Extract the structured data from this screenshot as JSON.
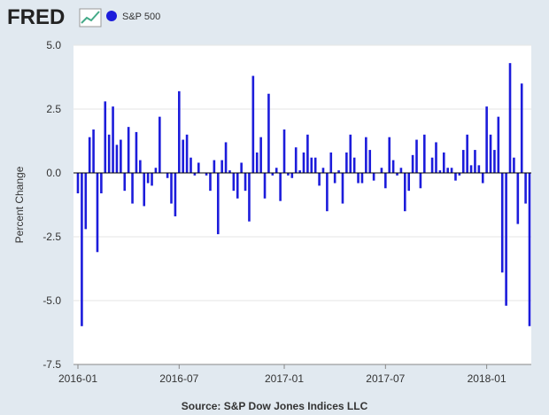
{
  "chart_data": {
    "type": "bar",
    "logo": "FRED",
    "y_label": "Percent Change",
    "source": "Source: S&P Dow Jones Indices LLC",
    "legend_position": "top-left",
    "x": [
      "2016-01",
      "2016-01",
      "2016-01",
      "2016-01",
      "2016-01",
      "2016-02",
      "2016-02",
      "2016-02",
      "2016-02",
      "2016-03",
      "2016-03",
      "2016-03",
      "2016-03",
      "2016-04",
      "2016-04",
      "2016-04",
      "2016-04",
      "2016-04",
      "2016-05",
      "2016-05",
      "2016-05",
      "2016-05",
      "2016-06",
      "2016-06",
      "2016-06",
      "2016-06",
      "2016-07",
      "2016-07",
      "2016-07",
      "2016-07",
      "2016-07",
      "2016-08",
      "2016-08",
      "2016-08",
      "2016-08",
      "2016-09",
      "2016-09",
      "2016-09",
      "2016-09",
      "2016-09",
      "2016-10",
      "2016-10",
      "2016-10",
      "2016-10",
      "2016-11",
      "2016-11",
      "2016-11",
      "2016-11",
      "2016-12",
      "2016-12",
      "2016-12",
      "2016-12",
      "2016-12",
      "2017-01",
      "2017-01",
      "2017-01",
      "2017-01",
      "2017-02",
      "2017-02",
      "2017-02",
      "2017-02",
      "2017-03",
      "2017-03",
      "2017-03",
      "2017-03",
      "2017-03",
      "2017-04",
      "2017-04",
      "2017-04",
      "2017-04",
      "2017-05",
      "2017-05",
      "2017-05",
      "2017-05",
      "2017-06",
      "2017-06",
      "2017-06",
      "2017-06",
      "2017-06",
      "2017-07",
      "2017-07",
      "2017-07",
      "2017-07",
      "2017-08",
      "2017-08",
      "2017-08",
      "2017-08",
      "2017-09",
      "2017-09",
      "2017-09",
      "2017-09",
      "2017-09",
      "2017-10",
      "2017-10",
      "2017-10",
      "2017-10",
      "2017-11",
      "2017-11",
      "2017-11",
      "2017-11",
      "2017-12",
      "2017-12",
      "2017-12",
      "2017-12",
      "2017-12",
      "2018-01",
      "2018-01",
      "2018-01",
      "2018-01",
      "2018-02",
      "2018-02",
      "2018-02",
      "2018-02",
      "2018-03",
      "2018-03",
      "2018-03",
      "2018-03"
    ],
    "series": [
      {
        "name": "S&P 500",
        "color": "#1c1cdb",
        "values": [
          -0.8,
          -6.0,
          -2.2,
          1.4,
          1.7,
          -3.1,
          -0.8,
          2.8,
          1.5,
          2.6,
          1.1,
          1.3,
          -0.7,
          1.8,
          -1.2,
          1.6,
          0.5,
          -1.3,
          -0.4,
          -0.5,
          0.2,
          2.2,
          0.0,
          -0.2,
          -1.2,
          -1.7,
          3.2,
          1.3,
          1.5,
          0.6,
          -0.1,
          0.4,
          0.0,
          -0.1,
          -0.7,
          0.5,
          -2.4,
          0.5,
          1.2,
          0.1,
          -0.7,
          -1.0,
          0.4,
          -0.7,
          -1.9,
          3.8,
          0.8,
          1.4,
          -1.0,
          3.1,
          -0.1,
          0.2,
          -1.1,
          1.7,
          -0.1,
          -0.2,
          1.0,
          0.1,
          0.8,
          1.5,
          0.6,
          0.6,
          -0.5,
          0.2,
          -1.5,
          0.8,
          -0.4,
          0.1,
          -1.2,
          0.8,
          1.5,
          0.6,
          -0.4,
          -0.4,
          1.4,
          0.9,
          -0.3,
          0.0,
          0.2,
          -0.6,
          1.4,
          0.5,
          -0.1,
          0.2,
          -1.5,
          -0.7,
          0.7,
          1.3,
          -0.6,
          1.5,
          0.0,
          0.6,
          1.2,
          0.1,
          0.8,
          0.2,
          0.2,
          -0.3,
          -0.1,
          0.9,
          1.5,
          0.3,
          0.9,
          0.3,
          -0.4,
          2.6,
          1.5,
          0.9,
          2.2,
          -3.9,
          -5.2,
          4.3,
          0.6,
          -2.0,
          3.5,
          -1.2,
          -6.0
        ]
      }
    ],
    "xticks": [
      "2016-01",
      "2016-07",
      "2017-01",
      "2017-07",
      "2018-01"
    ],
    "ylim": [
      -7.5,
      5
    ],
    "yticks": [
      {
        "value": -7.5,
        "label": "-7.5"
      },
      {
        "value": -5,
        "label": "-5.0"
      },
      {
        "value": -2.5,
        "label": "-2.5"
      },
      {
        "value": 0,
        "label": "0.0"
      },
      {
        "value": 2.5,
        "label": "2.5"
      },
      {
        "value": 5,
        "label": "5.0"
      }
    ],
    "grid": true
  }
}
